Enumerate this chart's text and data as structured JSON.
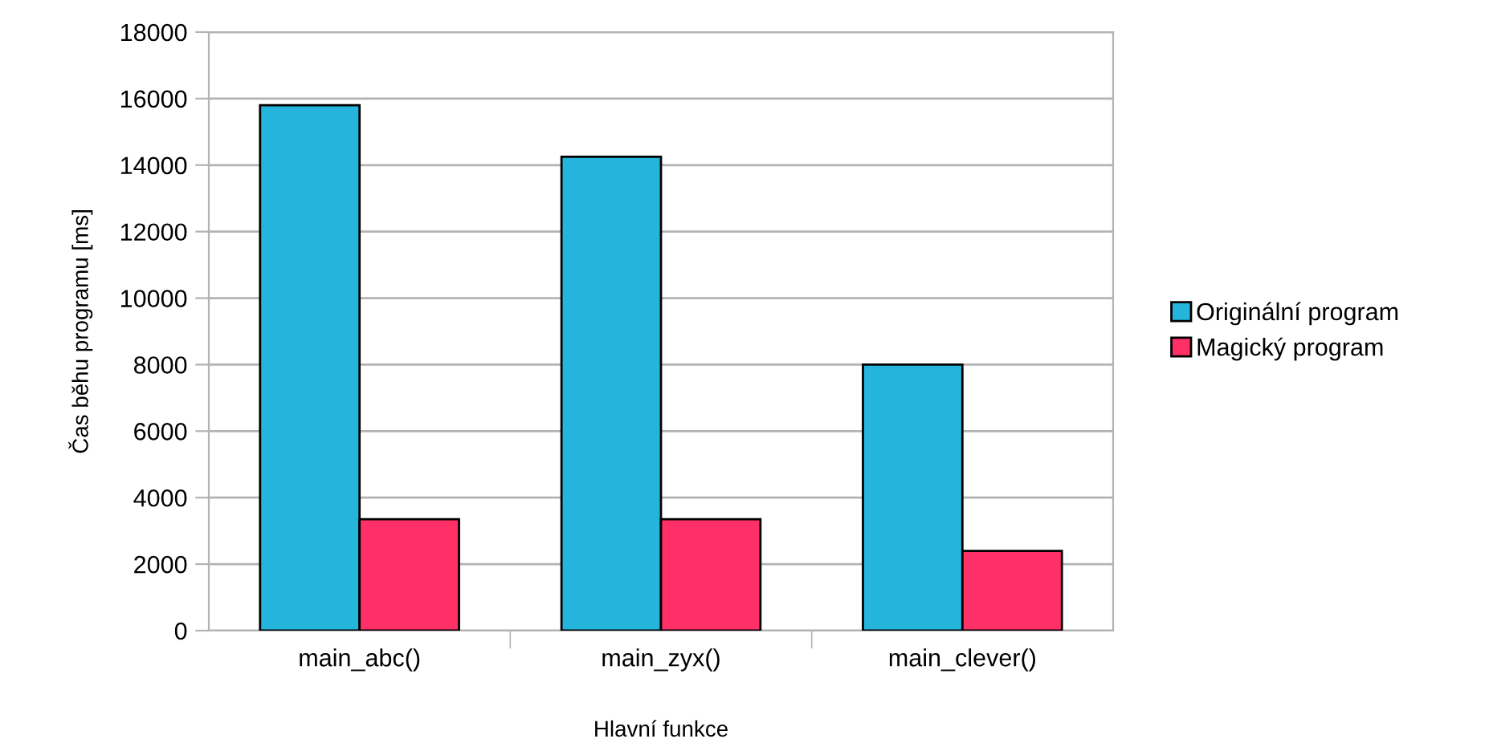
{
  "chart_data": {
    "type": "bar",
    "xlabel": "Hlavní funkce",
    "ylabel": "Čas běhu programu [ms]",
    "categories": [
      "main_abc()",
      "main_zyx()",
      "main_clever()"
    ],
    "series": [
      {
        "name": "Originální program",
        "color": "#25b5dc",
        "values": [
          15800,
          14250,
          8000
        ]
      },
      {
        "name": "Magický program",
        "color": "#ff2f68",
        "values": [
          3350,
          3350,
          2400
        ]
      }
    ],
    "ylim": [
      0,
      18000
    ],
    "yticks": [
      0,
      2000,
      4000,
      6000,
      8000,
      10000,
      12000,
      14000,
      16000,
      18000
    ],
    "grid": "y",
    "legend": "right"
  }
}
